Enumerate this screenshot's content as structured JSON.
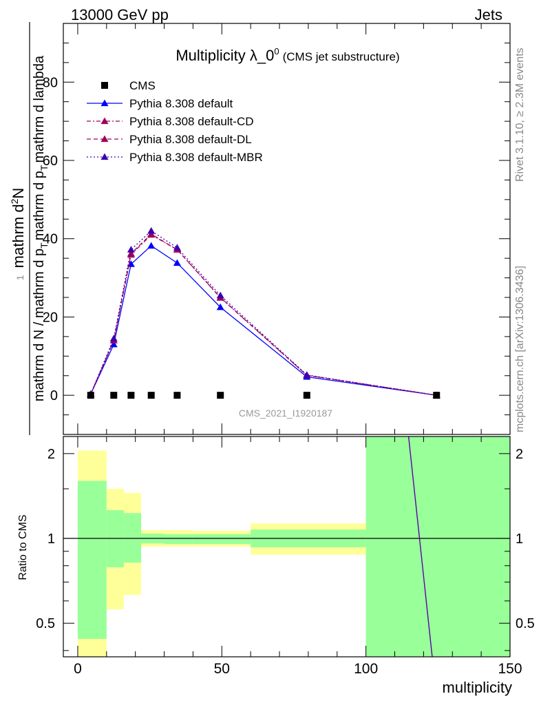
{
  "header": {
    "left": "13000 GeV pp",
    "right": "Jets"
  },
  "side_labels": {
    "rivet": "Rivet 3.1.10, ≥ 2.3M events",
    "mcplots": "mcplots.cern.ch [arXiv:1306.3436]"
  },
  "chart_data": [
    {
      "type": "line",
      "title": "Multiplicity λ_0",
      "title_sup": "0",
      "subtitle": "(CMS jet substructure)",
      "watermark": "CMS_2021_I1920187",
      "ylabel_parts": {
        "prefix": "mathrm d N / mathrm d p",
        "prefix_sub": "T",
        "middle": "mathrm d p",
        "middle_sub": "T",
        "suffix": "mathrm d lambda",
        "numerator": "mathrm d",
        "numerator_sup": "2",
        "numerator_tail": "N",
        "one": "1"
      },
      "xlim": [
        -5,
        150
      ],
      "ylim": [
        -10,
        95
      ],
      "yticks": [
        0,
        20,
        40,
        60,
        80
      ],
      "grid": false,
      "legend_position": "top-left",
      "x": [
        4.5,
        12.5,
        18.5,
        25.5,
        34.5,
        49.5,
        79.5,
        124.5
      ],
      "series": [
        {
          "name": "CMS",
          "color": "#000000",
          "marker": "square",
          "values": [
            0,
            0,
            0,
            0,
            0,
            0,
            0,
            0
          ]
        },
        {
          "name": "Pythia 8.308 default",
          "color": "#0000ff",
          "marker": "triangle",
          "dash": "solid",
          "values": [
            0.3,
            13.0,
            33.5,
            38.2,
            33.8,
            22.5,
            4.7,
            0.0
          ]
        },
        {
          "name": "Pythia 8.308 default-CD",
          "color": "#a0005a",
          "marker": "triangle",
          "dash": "dashdot",
          "values": [
            0.3,
            14.0,
            35.9,
            41.0,
            37.2,
            24.9,
            5.1,
            0.0
          ]
        },
        {
          "name": "Pythia 8.308 default-DL",
          "color": "#a0005a",
          "marker": "triangle",
          "dash": "dashed",
          "values": [
            0.3,
            14.0,
            36.2,
            41.2,
            37.2,
            25.0,
            5.1,
            0.0
          ]
        },
        {
          "name": "Pythia 8.308 default-MBR",
          "color": "#3a00b0",
          "marker": "triangle",
          "dash": "dotted",
          "values": [
            0.3,
            14.5,
            37.2,
            42.0,
            37.7,
            25.5,
            5.2,
            0.0
          ]
        }
      ]
    },
    {
      "type": "area",
      "ylabel": "Ratio to CMS",
      "xlabel": "multiplicity",
      "xlim": [
        -5,
        150
      ],
      "ylim": [
        0.38,
        2.3
      ],
      "yscale": "log",
      "yticks": [
        0.5,
        1,
        2
      ],
      "xticks": [
        0,
        50,
        100,
        150
      ],
      "reference_line": 1,
      "bins": [
        {
          "lo": 0,
          "hi": 10,
          "yellow": [
            0.38,
            2.05
          ],
          "green": [
            0.44,
            1.6
          ]
        },
        {
          "lo": 10,
          "hi": 16,
          "yellow": [
            0.56,
            1.5
          ],
          "green": [
            0.79,
            1.26
          ]
        },
        {
          "lo": 16,
          "hi": 22,
          "yellow": [
            0.63,
            1.45
          ],
          "green": [
            0.82,
            1.23
          ]
        },
        {
          "lo": 22,
          "hi": 30,
          "yellow": [
            0.935,
            1.07
          ],
          "green": [
            0.96,
            1.04
          ]
        },
        {
          "lo": 30,
          "hi": 40,
          "yellow": [
            0.935,
            1.07
          ],
          "green": [
            0.955,
            1.035
          ]
        },
        {
          "lo": 40,
          "hi": 60,
          "yellow": [
            0.935,
            1.065
          ],
          "green": [
            0.955,
            1.035
          ]
        },
        {
          "lo": 60,
          "hi": 100,
          "yellow": [
            0.875,
            1.13
          ],
          "green": [
            0.93,
            1.075
          ]
        },
        {
          "lo": 100,
          "hi": 150,
          "yellow": [
            0.38,
            2.3
          ],
          "green": [
            0.38,
            2.3
          ]
        }
      ],
      "series": [
        {
          "name": "Pythia 8.308 default-MBR",
          "color": "#5a00b0",
          "x": [
            114.8,
            123.0
          ],
          "values": [
            2.3,
            0.38
          ]
        }
      ],
      "colors": {
        "yellow": "#ffff99",
        "green": "#99ff99"
      }
    }
  ]
}
